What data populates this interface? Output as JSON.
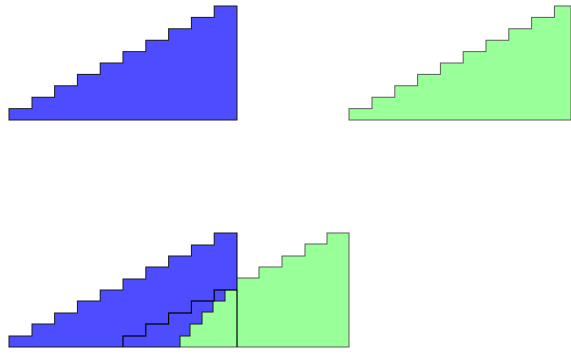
{
  "colors": {
    "blue_fill": "#4d4dff",
    "green_fill": "#99ff99",
    "outline_blue": "#1a1a1a",
    "outline_green": "#5a5a5a",
    "step_line": "#000000"
  },
  "blue_staircase": {
    "steps": 10
  },
  "green_staircase": {
    "steps": 9
  },
  "combined": {
    "blue_steps": 10,
    "green_steps": 5,
    "inner_steps": 5
  }
}
